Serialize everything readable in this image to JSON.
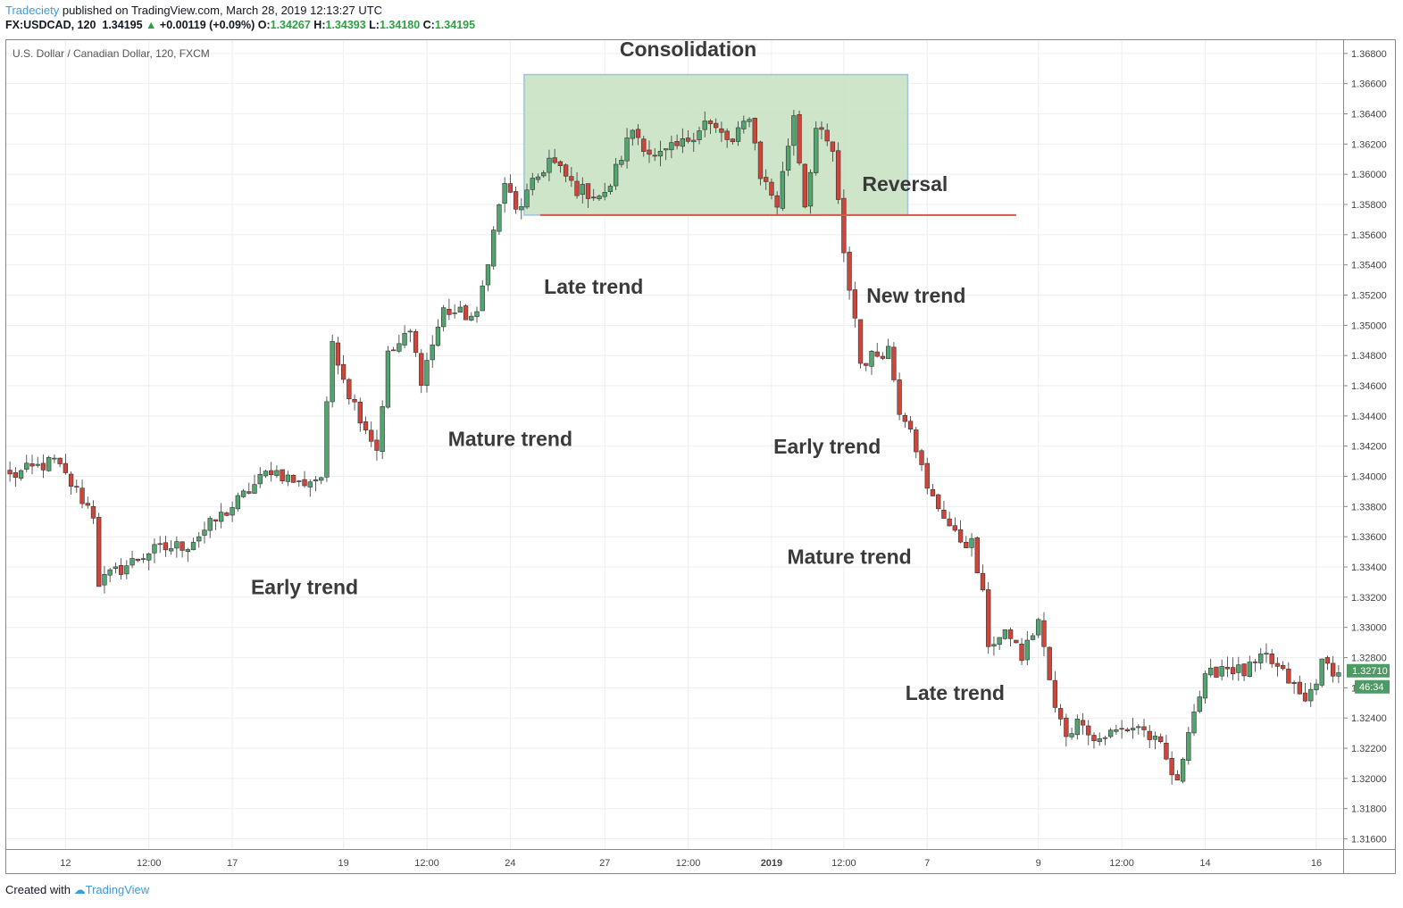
{
  "header": {
    "publisher": "Tradeciety",
    "published_text": "published on TradingView.com, March 28, 2019 12:13:27 UTC",
    "symbol": "FX:USDCAD, 120",
    "last": "1.34195",
    "change": "+0.00119 (+0.09%)",
    "o_label": "O:",
    "o_val": "1.34267",
    "h_label": "H:",
    "h_val": "1.34393",
    "l_label": "L:",
    "l_val": "1.34180",
    "c_label": "C:",
    "c_val": "1.34195"
  },
  "footer": {
    "created_with": "Created with",
    "brand": "TradingView"
  },
  "colors": {
    "up": "#53a56f",
    "down": "#d0453a",
    "grid": "#eeeeee",
    "zone": "#c6e0bf",
    "line": "#d9534f",
    "price_tag": "#4e9a64"
  },
  "chart_data": {
    "type": "candlestick",
    "title": "U.S. Dollar / Canadian Dollar, 120, FXCM",
    "y_ticks": [
      "1.36800",
      "1.36600",
      "1.36400",
      "1.36200",
      "1.36000",
      "1.35800",
      "1.35600",
      "1.35400",
      "1.35200",
      "1.35000",
      "1.34800",
      "1.34600",
      "1.34400",
      "1.34200",
      "1.34000",
      "1.33800",
      "1.33600",
      "1.33400",
      "1.33200",
      "1.33000",
      "1.32800",
      "1.32600",
      "1.32400",
      "1.32200",
      "1.32000",
      "1.31800",
      "1.31600"
    ],
    "ylim": [
      1.3155,
      1.3687
    ],
    "x_ticks": [
      "12",
      "12:00",
      "17",
      "19",
      "12:00",
      "24",
      "27",
      "12:00",
      "2019",
      "12:00",
      "7",
      "9",
      "12:00",
      "14",
      "16"
    ],
    "x_tick_index": [
      10,
      25,
      40,
      60,
      75,
      90,
      107,
      122,
      137,
      150,
      165,
      185,
      200,
      215,
      235
    ],
    "bar_count": 240,
    "anchors": [
      [
        0,
        1.34
      ],
      [
        8,
        1.341
      ],
      [
        15,
        1.3375
      ],
      [
        16,
        1.333
      ],
      [
        25,
        1.335
      ],
      [
        32,
        1.3355
      ],
      [
        40,
        1.338
      ],
      [
        47,
        1.3405
      ],
      [
        52,
        1.3395
      ],
      [
        56,
        1.34
      ],
      [
        58,
        1.349
      ],
      [
        61,
        1.3455
      ],
      [
        66,
        1.3418
      ],
      [
        68,
        1.348
      ],
      [
        72,
        1.3495
      ],
      [
        74,
        1.3465
      ],
      [
        78,
        1.351
      ],
      [
        84,
        1.3505
      ],
      [
        86,
        1.3545
      ],
      [
        89,
        1.3595
      ],
      [
        91,
        1.3575
      ],
      [
        97,
        1.361
      ],
      [
        102,
        1.359
      ],
      [
        107,
        1.3585
      ],
      [
        112,
        1.363
      ],
      [
        116,
        1.361
      ],
      [
        121,
        1.362
      ],
      [
        125,
        1.3635
      ],
      [
        130,
        1.362
      ],
      [
        133,
        1.364
      ],
      [
        135,
        1.36
      ],
      [
        138,
        1.358
      ],
      [
        141,
        1.364
      ],
      [
        143,
        1.358
      ],
      [
        145,
        1.363
      ],
      [
        148,
        1.3615
      ],
      [
        150,
        1.3545
      ],
      [
        152,
        1.3505
      ],
      [
        153,
        1.3475
      ],
      [
        158,
        1.3485
      ],
      [
        160,
        1.3445
      ],
      [
        162,
        1.3435
      ],
      [
        165,
        1.339
      ],
      [
        168,
        1.3375
      ],
      [
        170,
        1.336
      ],
      [
        173,
        1.3355
      ],
      [
        175,
        1.332
      ],
      [
        176,
        1.329
      ],
      [
        180,
        1.3295
      ],
      [
        182,
        1.328
      ],
      [
        185,
        1.3305
      ],
      [
        188,
        1.3245
      ],
      [
        190,
        1.323
      ],
      [
        193,
        1.324
      ],
      [
        195,
        1.3225
      ],
      [
        198,
        1.323
      ],
      [
        203,
        1.3235
      ],
      [
        207,
        1.322
      ],
      [
        210,
        1.3195
      ],
      [
        212,
        1.3235
      ],
      [
        215,
        1.3265
      ],
      [
        218,
        1.3275
      ],
      [
        222,
        1.327
      ],
      [
        226,
        1.328
      ],
      [
        230,
        1.3265
      ],
      [
        233,
        1.325
      ],
      [
        236,
        1.3275
      ],
      [
        240,
        1.327
      ]
    ],
    "last_price": "1.32710",
    "countdown": "46:34",
    "zone_label": "Consolidation",
    "zone_range": [
      1.3573,
      1.3666
    ],
    "zone_bars": [
      93,
      161
    ],
    "reversal_level": 1.3573,
    "annotations": [
      {
        "text": "Consolidation",
        "bar": 122,
        "y": 1.3678
      },
      {
        "text": "Reversal",
        "bar": 161,
        "y": 1.3589
      },
      {
        "text": "Late trend",
        "bar": 105,
        "y": 1.3521
      },
      {
        "text": "New trend",
        "bar": 163,
        "y": 1.3515
      },
      {
        "text": "Mature trend",
        "bar": 90,
        "y": 1.342
      },
      {
        "text": "Early trend",
        "bar": 147,
        "y": 1.3415
      },
      {
        "text": "Mature trend",
        "bar": 151,
        "y": 1.3342
      },
      {
        "text": "Early trend",
        "bar": 53,
        "y": 1.3322
      },
      {
        "text": "Late trend",
        "bar": 170,
        "y": 1.3252
      }
    ]
  }
}
